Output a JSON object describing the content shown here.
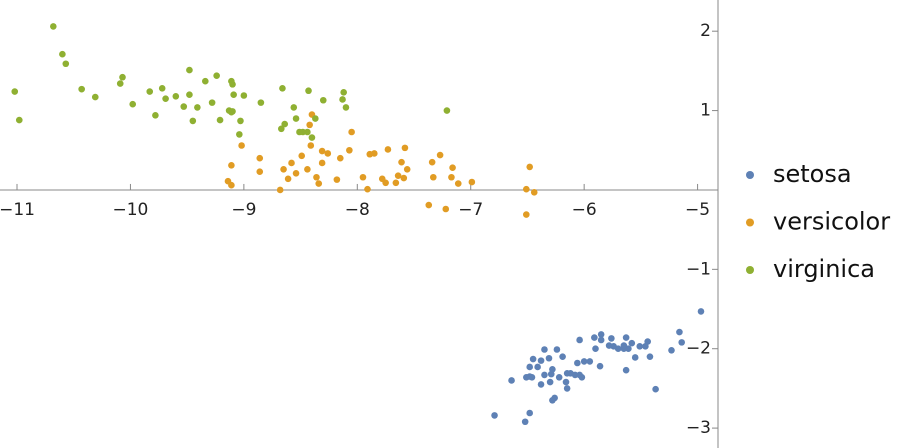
{
  "chart_data": {
    "type": "scatter",
    "xlim": [
      -11.15,
      -4.82
    ],
    "ylim": [
      -3.15,
      2.33
    ],
    "xticks": [
      {
        "value": -11,
        "label": "−11"
      },
      {
        "value": -10,
        "label": "−10"
      },
      {
        "value": -9,
        "label": "−9"
      },
      {
        "value": -8,
        "label": "−8"
      },
      {
        "value": -7,
        "label": "−7"
      },
      {
        "value": -6,
        "label": "−6"
      },
      {
        "value": -5,
        "label": "−5"
      }
    ],
    "yticks": [
      {
        "value": -3,
        "label": "−3"
      },
      {
        "value": -2,
        "label": "−2"
      },
      {
        "value": -1,
        "label": "−1"
      },
      1,
      2
    ],
    "legend": "right",
    "series": [
      {
        "name": "setosa",
        "color": "#5e81b5",
        "values": [
          [
            -4.97,
            -1.53
          ],
          [
            -5.16,
            -1.79
          ],
          [
            -5.14,
            -1.92
          ],
          [
            -5.23,
            -2.02
          ],
          [
            -5.37,
            -2.51
          ],
          [
            -5.42,
            -2.1
          ],
          [
            -5.44,
            -1.91
          ],
          [
            -5.46,
            -1.97
          ],
          [
            -5.51,
            -1.97
          ],
          [
            -5.55,
            -2.11
          ],
          [
            -5.58,
            -1.93
          ],
          [
            -5.61,
            -2.0
          ],
          [
            -5.63,
            -1.86
          ],
          [
            -5.63,
            -2.27
          ],
          [
            -5.65,
            -2.0
          ],
          [
            -5.65,
            -1.96
          ],
          [
            -5.7,
            -2.0
          ],
          [
            -5.74,
            -1.97
          ],
          [
            -5.76,
            -1.87
          ],
          [
            -5.78,
            -1.96
          ],
          [
            -5.85,
            -1.89
          ],
          [
            -5.86,
            -2.22
          ],
          [
            -5.9,
            -2.0
          ],
          [
            -5.91,
            -1.86
          ],
          [
            -5.95,
            -2.16
          ],
          [
            -6.0,
            -2.16
          ],
          [
            -6.02,
            -2.36
          ],
          [
            -6.04,
            -2.33
          ],
          [
            -6.06,
            -2.18
          ],
          [
            -6.08,
            -2.33
          ],
          [
            -6.12,
            -2.31
          ],
          [
            -6.15,
            -2.31
          ],
          [
            -6.19,
            -2.1
          ],
          [
            -6.22,
            -2.36
          ],
          [
            -6.24,
            -2.01
          ],
          [
            -6.28,
            -2.26
          ],
          [
            -6.29,
            -2.32
          ],
          [
            -6.31,
            -2.12
          ],
          [
            -6.35,
            -2.01
          ],
          [
            -6.35,
            -2.33
          ],
          [
            -6.38,
            -2.45
          ],
          [
            -6.38,
            -2.15
          ],
          [
            -6.41,
            -2.23
          ],
          [
            -6.45,
            -2.13
          ],
          [
            -6.46,
            -2.36
          ],
          [
            -6.48,
            -2.23
          ],
          [
            -6.51,
            -2.36
          ],
          [
            -6.79,
            -2.84
          ],
          [
            -6.52,
            -2.92
          ],
          [
            -6.48,
            -2.81
          ],
          [
            -6.48,
            -2.35
          ],
          [
            -6.64,
            -2.4
          ],
          [
            -6.26,
            -2.62
          ],
          [
            -6.28,
            -2.65
          ],
          [
            -6.3,
            -2.42
          ],
          [
            -6.16,
            -2.42
          ],
          [
            -6.15,
            -2.5
          ],
          [
            -5.85,
            -1.82
          ],
          [
            -6.04,
            -1.89
          ]
        ]
      },
      {
        "name": "versicolor",
        "color": "#e19c24",
        "values": [
          [
            -6.48,
            0.29
          ],
          [
            -6.51,
            0.01
          ],
          [
            -6.44,
            -0.03
          ],
          [
            -6.51,
            -0.31
          ],
          [
            -6.99,
            0.1
          ],
          [
            -7.11,
            0.08
          ],
          [
            -7.16,
            0.28
          ],
          [
            -7.17,
            0.16
          ],
          [
            -7.22,
            -0.24
          ],
          [
            -7.27,
            0.44
          ],
          [
            -7.33,
            0.16
          ],
          [
            -7.34,
            0.35
          ],
          [
            -7.37,
            -0.19
          ],
          [
            -7.56,
            0.26
          ],
          [
            -7.58,
            0.53
          ],
          [
            -7.59,
            0.15
          ],
          [
            -7.61,
            0.35
          ],
          [
            -7.64,
            0.18
          ],
          [
            -7.66,
            0.09
          ],
          [
            -7.73,
            0.51
          ],
          [
            -7.75,
            0.09
          ],
          [
            -7.78,
            0.14
          ],
          [
            -7.85,
            0.46
          ],
          [
            -7.89,
            0.45
          ],
          [
            -7.91,
            0.01
          ],
          [
            -7.95,
            0.16
          ],
          [
            -8.05,
            0.73
          ],
          [
            -8.07,
            0.5
          ],
          [
            -8.15,
            0.4
          ],
          [
            -8.18,
            0.13
          ],
          [
            -8.26,
            0.46
          ],
          [
            -8.31,
            0.34
          ],
          [
            -8.31,
            0.49
          ],
          [
            -8.34,
            0.08
          ],
          [
            -8.36,
            0.16
          ],
          [
            -8.4,
            0.95
          ],
          [
            -8.41,
            0.56
          ],
          [
            -8.42,
            0.82
          ],
          [
            -8.44,
            0.26
          ],
          [
            -8.49,
            0.43
          ],
          [
            -8.54,
            0.21
          ],
          [
            -8.61,
            0.14
          ],
          [
            -8.58,
            0.34
          ],
          [
            -8.68,
            0.0
          ],
          [
            -8.65,
            0.26
          ],
          [
            -8.86,
            0.23
          ],
          [
            -8.86,
            0.4
          ],
          [
            -9.02,
            0.56
          ],
          [
            -9.11,
            0.06
          ],
          [
            -9.11,
            0.31
          ],
          [
            -9.14,
            0.11
          ]
        ]
      },
      {
        "name": "virginica",
        "color": "#8fb032",
        "values": [
          [
            -7.21,
            1.0
          ],
          [
            -8.1,
            1.04
          ],
          [
            -8.12,
            1.23
          ],
          [
            -8.13,
            1.14
          ],
          [
            -8.3,
            1.13
          ],
          [
            -8.43,
            1.25
          ],
          [
            -8.37,
            0.9
          ],
          [
            -8.4,
            0.66
          ],
          [
            -8.44,
            0.73
          ],
          [
            -8.48,
            0.73
          ],
          [
            -8.51,
            0.73
          ],
          [
            -8.54,
            0.9
          ],
          [
            -8.56,
            1.04
          ],
          [
            -8.64,
            0.83
          ],
          [
            -8.66,
            1.28
          ],
          [
            -8.85,
            1.1
          ],
          [
            -9.0,
            1.19
          ],
          [
            -9.04,
            0.7
          ],
          [
            -9.03,
            0.87
          ],
          [
            -9.09,
            1.2
          ],
          [
            -9.1,
            1.33
          ],
          [
            -9.11,
            1.37
          ],
          [
            -9.1,
            0.99
          ],
          [
            -9.13,
            1.0
          ],
          [
            -9.11,
            0.98
          ],
          [
            -9.21,
            0.88
          ],
          [
            -9.24,
            1.44
          ],
          [
            -9.28,
            1.1
          ],
          [
            -9.34,
            1.37
          ],
          [
            -9.41,
            1.04
          ],
          [
            -9.45,
            0.87
          ],
          [
            -9.48,
            1.51
          ],
          [
            -9.48,
            1.2
          ],
          [
            -9.53,
            1.05
          ],
          [
            -9.6,
            1.18
          ],
          [
            -9.69,
            1.15
          ],
          [
            -9.72,
            1.28
          ],
          [
            -9.78,
            0.94
          ],
          [
            -9.83,
            1.24
          ],
          [
            -9.98,
            1.08
          ],
          [
            -10.07,
            1.42
          ],
          [
            -10.09,
            1.34
          ],
          [
            -10.31,
            1.17
          ],
          [
            -10.43,
            1.27
          ],
          [
            -10.57,
            1.59
          ],
          [
            -10.6,
            1.71
          ],
          [
            -10.68,
            2.06
          ],
          [
            -10.98,
            0.88
          ],
          [
            -11.02,
            1.24
          ],
          [
            -8.67,
            0.77
          ]
        ]
      }
    ]
  }
}
